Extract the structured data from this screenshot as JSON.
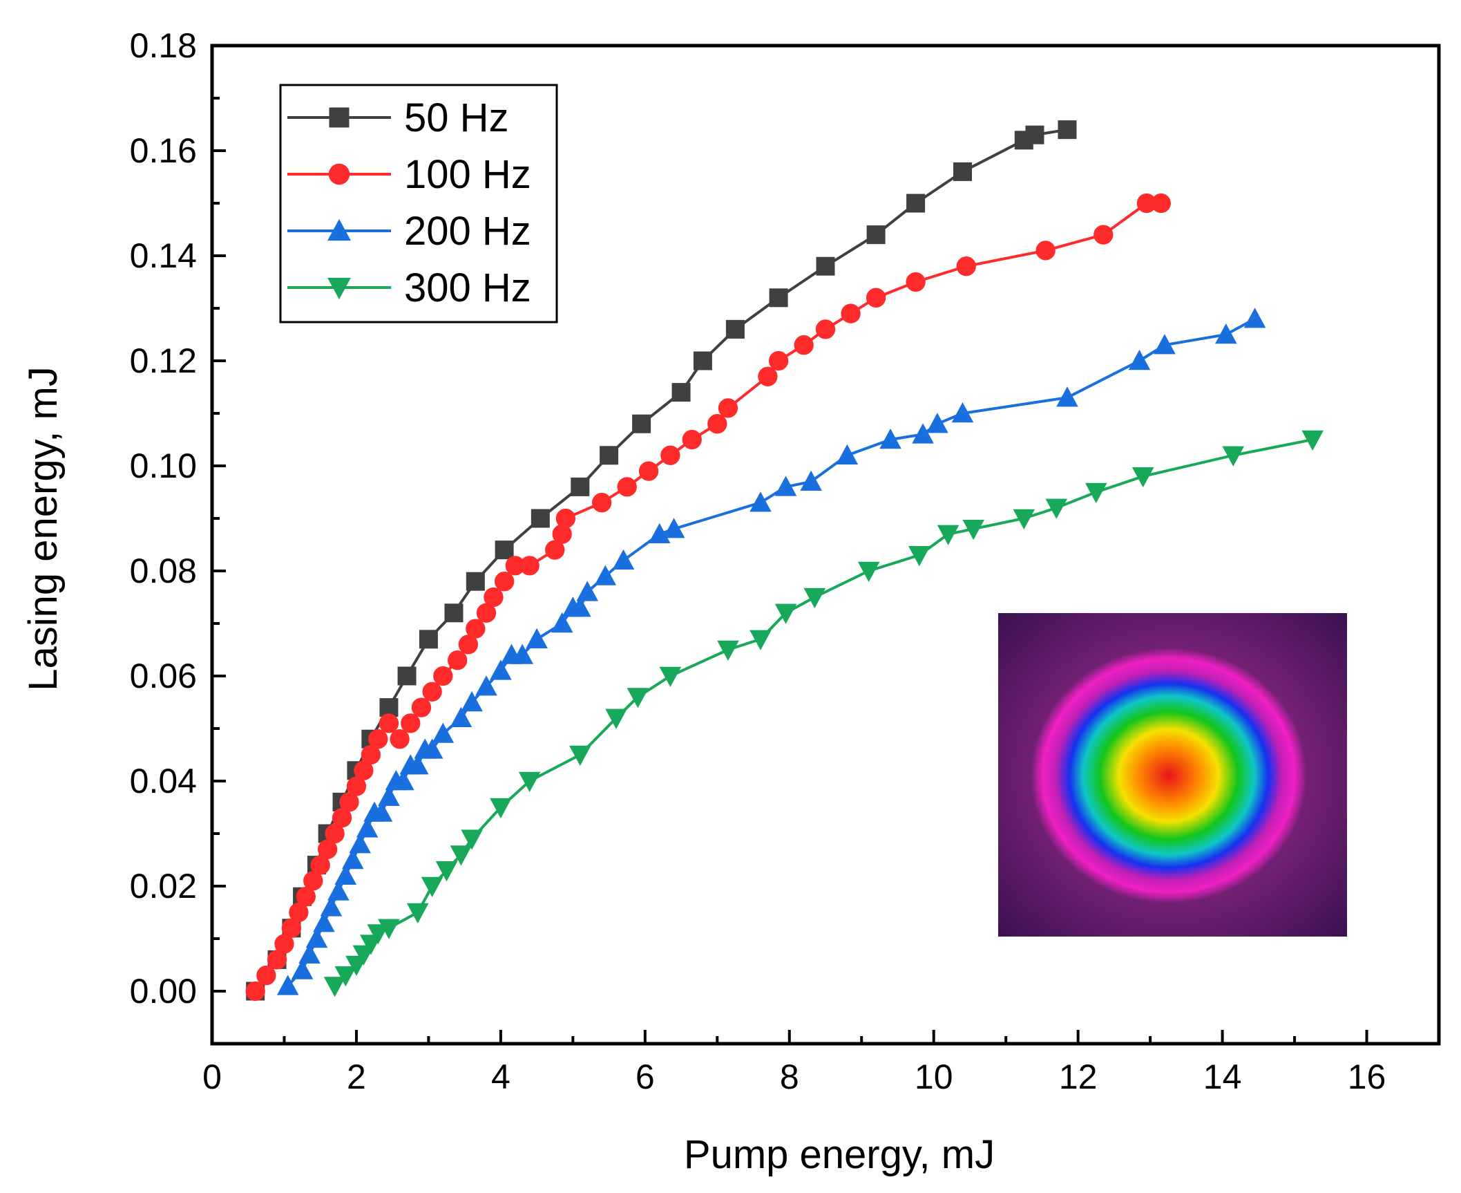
{
  "chart_data": {
    "type": "line",
    "title": "",
    "xlabel": "Pump energy, mJ",
    "ylabel": "Lasing energy, mJ",
    "xlim": [
      0,
      17
    ],
    "ylim": [
      -0.01,
      0.18
    ],
    "xticks": [
      0,
      2,
      4,
      6,
      8,
      10,
      12,
      14,
      16
    ],
    "yticks": [
      0.0,
      0.02,
      0.04,
      0.06,
      0.08,
      0.1,
      0.12,
      0.14,
      0.16,
      0.18
    ],
    "xtick_labels": [
      "0",
      "2",
      "4",
      "6",
      "8",
      "10",
      "12",
      "14",
      "16"
    ],
    "ytick_labels": [
      "0.00",
      "0.02",
      "0.04",
      "0.06",
      "0.08",
      "0.10",
      "0.12",
      "0.14",
      "0.16",
      "0.18"
    ],
    "grid": false,
    "legend_position": "top-left",
    "inset": "laser beam profile image (false-color)",
    "series": [
      {
        "name": "50 Hz",
        "marker": "square",
        "color": "#404040",
        "x": [
          0.6,
          0.9,
          1.1,
          1.25,
          1.45,
          1.6,
          1.8,
          2.0,
          2.2,
          2.45,
          2.7,
          3.0,
          3.35,
          3.65,
          4.05,
          4.55,
          5.1,
          5.5,
          5.95,
          6.5,
          6.8,
          7.25,
          7.85,
          8.5,
          9.2,
          9.75,
          10.4,
          11.25,
          11.4,
          11.85
        ],
        "y": [
          0.0,
          0.006,
          0.012,
          0.018,
          0.024,
          0.03,
          0.036,
          0.042,
          0.048,
          0.054,
          0.06,
          0.067,
          0.072,
          0.078,
          0.084,
          0.09,
          0.096,
          0.102,
          0.108,
          0.114,
          0.12,
          0.126,
          0.132,
          0.138,
          0.144,
          0.15,
          0.156,
          0.162,
          0.163,
          0.164
        ]
      },
      {
        "name": "100 Hz",
        "marker": "circle",
        "color": "#ff2a2a",
        "x": [
          0.6,
          0.75,
          0.9,
          1.0,
          1.1,
          1.2,
          1.3,
          1.4,
          1.5,
          1.6,
          1.7,
          1.8,
          1.9,
          2.0,
          2.1,
          2.2,
          2.3,
          2.45,
          2.6,
          2.75,
          2.9,
          3.05,
          3.2,
          3.4,
          3.55,
          3.65,
          3.8,
          3.9,
          4.05,
          4.2,
          4.4,
          4.75,
          4.85,
          4.9,
          5.4,
          5.75,
          6.05,
          6.35,
          6.65,
          7.0,
          7.15,
          7.7,
          7.85,
          8.2,
          8.5,
          8.85,
          9.2,
          9.75,
          10.45,
          11.55,
          12.35,
          12.95,
          13.15
        ],
        "y": [
          0.0,
          0.003,
          0.006,
          0.009,
          0.012,
          0.015,
          0.018,
          0.021,
          0.024,
          0.027,
          0.03,
          0.033,
          0.036,
          0.039,
          0.042,
          0.045,
          0.048,
          0.051,
          0.048,
          0.051,
          0.054,
          0.057,
          0.06,
          0.063,
          0.066,
          0.069,
          0.072,
          0.075,
          0.078,
          0.081,
          0.081,
          0.084,
          0.087,
          0.09,
          0.093,
          0.096,
          0.099,
          0.102,
          0.105,
          0.108,
          0.111,
          0.117,
          0.12,
          0.123,
          0.126,
          0.129,
          0.132,
          0.135,
          0.138,
          0.141,
          0.144,
          0.15,
          0.15
        ]
      },
      {
        "name": "200 Hz",
        "marker": "triangle-up",
        "color": "#1a6fdf",
        "x": [
          1.05,
          1.25,
          1.35,
          1.45,
          1.55,
          1.65,
          1.75,
          1.85,
          1.95,
          2.05,
          2.15,
          2.25,
          2.35,
          2.45,
          2.55,
          2.65,
          2.75,
          2.85,
          2.95,
          3.05,
          3.2,
          3.45,
          3.6,
          3.8,
          4.0,
          4.15,
          4.3,
          4.5,
          4.85,
          5.0,
          5.1,
          5.2,
          5.45,
          5.7,
          6.2,
          6.4,
          7.6,
          7.95,
          8.3,
          8.8,
          9.4,
          9.85,
          10.05,
          10.4,
          11.85,
          12.85,
          13.2,
          14.05,
          14.45
        ],
        "y": [
          0.001,
          0.004,
          0.007,
          0.01,
          0.013,
          0.016,
          0.019,
          0.022,
          0.025,
          0.028,
          0.031,
          0.034,
          0.034,
          0.037,
          0.04,
          0.04,
          0.043,
          0.043,
          0.046,
          0.046,
          0.049,
          0.052,
          0.055,
          0.058,
          0.061,
          0.064,
          0.064,
          0.067,
          0.07,
          0.073,
          0.073,
          0.076,
          0.079,
          0.082,
          0.087,
          0.088,
          0.093,
          0.096,
          0.097,
          0.102,
          0.105,
          0.106,
          0.108,
          0.11,
          0.113,
          0.12,
          0.123,
          0.125,
          0.128
        ]
      },
      {
        "name": "300 Hz",
        "marker": "triangle-down",
        "color": "#17a85a",
        "x": [
          1.7,
          1.85,
          2.0,
          2.1,
          2.2,
          2.3,
          2.45,
          2.85,
          3.05,
          3.25,
          3.45,
          3.6,
          4.0,
          4.4,
          5.1,
          5.6,
          5.9,
          6.35,
          7.15,
          7.6,
          7.95,
          8.35,
          9.1,
          9.8,
          10.2,
          10.55,
          11.25,
          11.7,
          12.25,
          12.9,
          14.15,
          15.25
        ],
        "y": [
          0.001,
          0.003,
          0.005,
          0.007,
          0.009,
          0.011,
          0.012,
          0.015,
          0.02,
          0.023,
          0.026,
          0.029,
          0.035,
          0.04,
          0.045,
          0.052,
          0.056,
          0.06,
          0.065,
          0.067,
          0.072,
          0.075,
          0.08,
          0.083,
          0.087,
          0.088,
          0.09,
          0.092,
          0.095,
          0.098,
          0.102,
          0.105
        ]
      }
    ]
  }
}
